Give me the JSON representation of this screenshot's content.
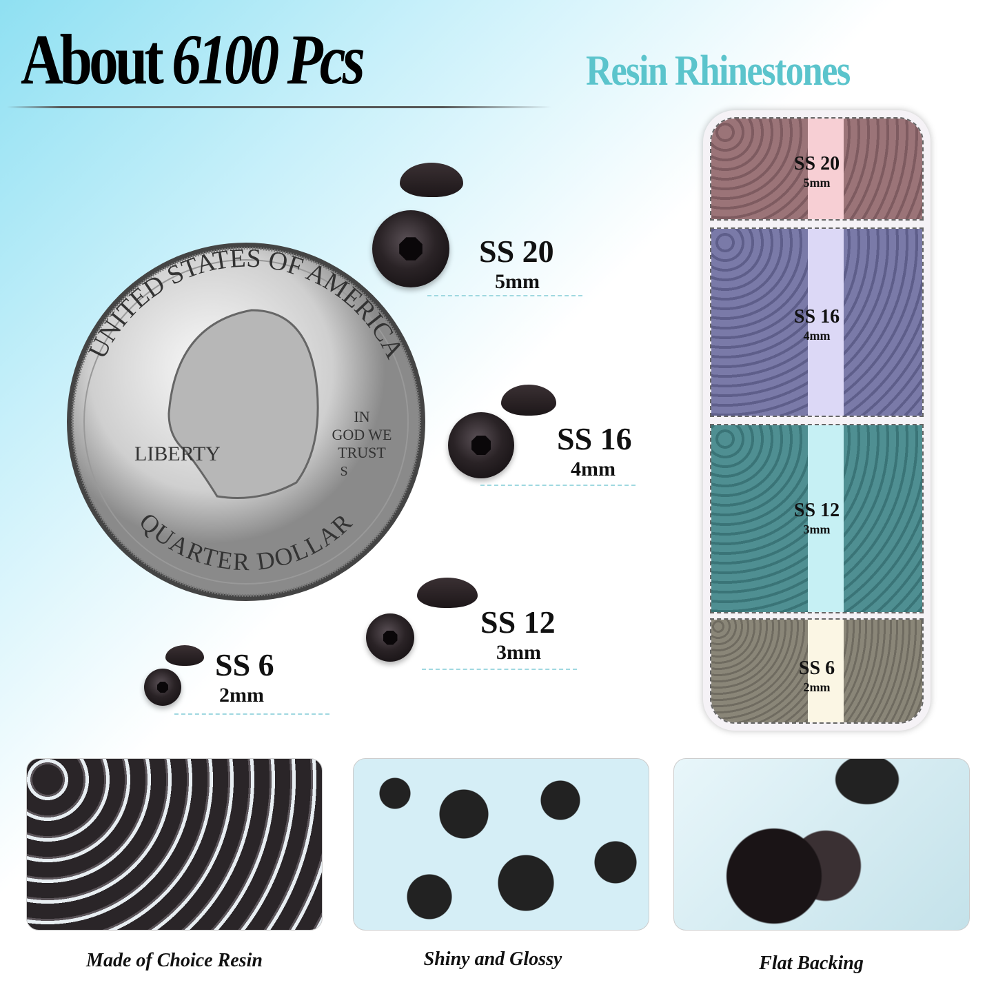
{
  "header": {
    "title_prefix": "About ",
    "title_count": "6100 Pcs",
    "subtitle": "Resin Rhinestones",
    "accent": "#5bc4cc"
  },
  "coin": {
    "top_text": "UNITED STATES OF AMERICA",
    "motto": [
      "IN",
      "GOD WE",
      "TRUST"
    ],
    "left_text": "LIBERTY",
    "bottom_text": "QUARTER DOLLAR",
    "mint": "S"
  },
  "sizes": [
    {
      "label": "SS 20",
      "mm": "5mm"
    },
    {
      "label": "SS 16",
      "mm": "4mm"
    },
    {
      "label": "SS 12",
      "mm": "3mm"
    },
    {
      "label": "SS 6",
      "mm": "2mm"
    }
  ],
  "box": {
    "compartments": [
      {
        "label": "SS 20",
        "mm": "5mm",
        "color": "#9b7478",
        "mid": "#f7cfd4"
      },
      {
        "label": "SS 16",
        "mm": "4mm",
        "color": "#7a7aa8",
        "mid": "#dcd8f6"
      },
      {
        "label": "SS 12",
        "mm": "3mm",
        "color": "#4f8f92",
        "mid": "#c6f0f4"
      },
      {
        "label": "SS 6",
        "mm": "2mm",
        "color": "#8a8678",
        "mid": "#fbf6e4"
      }
    ]
  },
  "features": [
    {
      "caption": "Made of Choice Resin"
    },
    {
      "caption": "Shiny and Glossy"
    },
    {
      "caption": "Flat Backing"
    }
  ]
}
